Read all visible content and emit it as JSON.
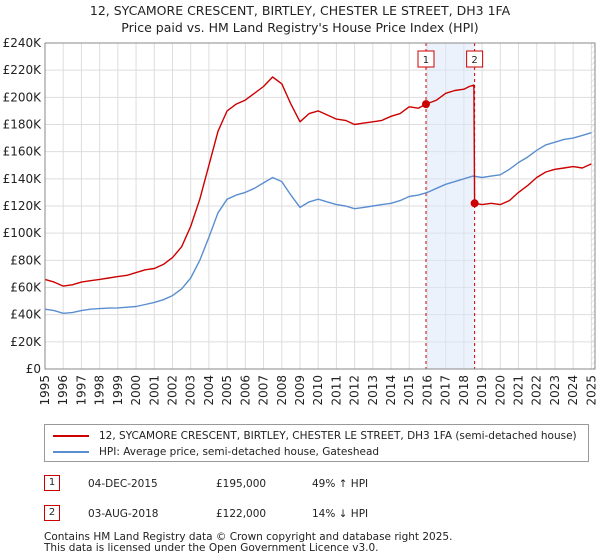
{
  "title_line1": "12, SYCAMORE CRESCENT, BIRTLEY, CHESTER LE STREET, DH3 1FA",
  "title_line2": "Price paid vs. HM Land Registry's House Price Index (HPI)",
  "chart_data": {
    "type": "line",
    "title": "12, SYCAMORE CRESCENT, BIRTLEY, CHESTER LE STREET, DH3 1FA — Price paid vs. HM Land Registry's House Price Index (HPI)",
    "xlim": [
      1995,
      2025.2
    ],
    "ylim": [
      0,
      240000
    ],
    "x_ticks": [
      "1995",
      "1996",
      "1997",
      "1998",
      "1999",
      "2000",
      "2001",
      "2002",
      "2003",
      "2004",
      "2005",
      "2006",
      "2007",
      "2008",
      "2009",
      "2010",
      "2011",
      "2012",
      "2013",
      "2014",
      "2015",
      "2016",
      "2017",
      "2018",
      "2019",
      "2020",
      "2021",
      "2022",
      "2023",
      "2024",
      "2025"
    ],
    "y_ticks": [
      {
        "value": 0,
        "label": "£0"
      },
      {
        "value": 20000,
        "label": "£20K"
      },
      {
        "value": 40000,
        "label": "£40K"
      },
      {
        "value": 60000,
        "label": "£60K"
      },
      {
        "value": 80000,
        "label": "£80K"
      },
      {
        "value": 100000,
        "label": "£100K"
      },
      {
        "value": 120000,
        "label": "£120K"
      },
      {
        "value": 140000,
        "label": "£140K"
      },
      {
        "value": 160000,
        "label": "£160K"
      },
      {
        "value": 180000,
        "label": "£180K"
      },
      {
        "value": 200000,
        "label": "£200K"
      },
      {
        "value": 220000,
        "label": "£220K"
      },
      {
        "value": 240000,
        "label": "£240K"
      }
    ],
    "grid": true,
    "series": [
      {
        "name": "12, SYCAMORE CRESCENT, BIRTLEY, CHESTER LE STREET, DH3 1FA (semi-detached house)",
        "color": "#cc0000",
        "points": [
          [
            1995.0,
            66000
          ],
          [
            1995.5,
            64000
          ],
          [
            1996.0,
            61000
          ],
          [
            1996.5,
            62000
          ],
          [
            1997.0,
            64000
          ],
          [
            1997.5,
            65000
          ],
          [
            1998.0,
            66000
          ],
          [
            1998.5,
            67000
          ],
          [
            1999.0,
            68000
          ],
          [
            1999.5,
            69000
          ],
          [
            2000.0,
            71000
          ],
          [
            2000.5,
            73000
          ],
          [
            2001.0,
            74000
          ],
          [
            2001.5,
            77000
          ],
          [
            2002.0,
            82000
          ],
          [
            2002.5,
            90000
          ],
          [
            2003.0,
            105000
          ],
          [
            2003.5,
            125000
          ],
          [
            2004.0,
            150000
          ],
          [
            2004.5,
            175000
          ],
          [
            2005.0,
            190000
          ],
          [
            2005.5,
            195000
          ],
          [
            2006.0,
            198000
          ],
          [
            2006.5,
            203000
          ],
          [
            2007.0,
            208000
          ],
          [
            2007.5,
            215000
          ],
          [
            2008.0,
            210000
          ],
          [
            2008.5,
            195000
          ],
          [
            2009.0,
            182000
          ],
          [
            2009.5,
            188000
          ],
          [
            2010.0,
            190000
          ],
          [
            2010.5,
            187000
          ],
          [
            2011.0,
            184000
          ],
          [
            2011.5,
            183000
          ],
          [
            2012.0,
            180000
          ],
          [
            2012.5,
            181000
          ],
          [
            2013.0,
            182000
          ],
          [
            2013.5,
            183000
          ],
          [
            2014.0,
            186000
          ],
          [
            2014.5,
            188000
          ],
          [
            2015.0,
            193000
          ],
          [
            2015.5,
            192000
          ],
          [
            2015.92,
            195000
          ],
          [
            2016.5,
            198000
          ],
          [
            2017.0,
            203000
          ],
          [
            2017.5,
            205000
          ],
          [
            2018.0,
            206000
          ],
          [
            2018.3,
            208000
          ],
          [
            2018.55,
            209000
          ],
          [
            2018.59,
            122000
          ],
          [
            2019.0,
            121000
          ],
          [
            2019.5,
            122000
          ],
          [
            2020.0,
            121000
          ],
          [
            2020.5,
            124000
          ],
          [
            2021.0,
            130000
          ],
          [
            2021.5,
            135000
          ],
          [
            2022.0,
            141000
          ],
          [
            2022.5,
            145000
          ],
          [
            2023.0,
            147000
          ],
          [
            2023.5,
            148000
          ],
          [
            2024.0,
            149000
          ],
          [
            2024.5,
            148000
          ],
          [
            2025.0,
            151000
          ]
        ]
      },
      {
        "name": "HPI: Average price, semi-detached house, Gateshead",
        "color": "#5b8ed0",
        "points": [
          [
            1995.0,
            44000
          ],
          [
            1995.5,
            43000
          ],
          [
            1996.0,
            41000
          ],
          [
            1996.5,
            41500
          ],
          [
            1997.0,
            43000
          ],
          [
            1997.5,
            44000
          ],
          [
            1998.0,
            44500
          ],
          [
            1998.5,
            44800
          ],
          [
            1999.0,
            45000
          ],
          [
            1999.5,
            45500
          ],
          [
            2000.0,
            46000
          ],
          [
            2000.5,
            47500
          ],
          [
            2001.0,
            49000
          ],
          [
            2001.5,
            51000
          ],
          [
            2002.0,
            54000
          ],
          [
            2002.5,
            59000
          ],
          [
            2003.0,
            67000
          ],
          [
            2003.5,
            80000
          ],
          [
            2004.0,
            97000
          ],
          [
            2004.5,
            115000
          ],
          [
            2005.0,
            125000
          ],
          [
            2005.5,
            128000
          ],
          [
            2006.0,
            130000
          ],
          [
            2006.5,
            133000
          ],
          [
            2007.0,
            137000
          ],
          [
            2007.5,
            141000
          ],
          [
            2008.0,
            138000
          ],
          [
            2008.5,
            128000
          ],
          [
            2009.0,
            119000
          ],
          [
            2009.5,
            123000
          ],
          [
            2010.0,
            125000
          ],
          [
            2010.5,
            123000
          ],
          [
            2011.0,
            121000
          ],
          [
            2011.5,
            120000
          ],
          [
            2012.0,
            118000
          ],
          [
            2012.5,
            119000
          ],
          [
            2013.0,
            120000
          ],
          [
            2013.5,
            121000
          ],
          [
            2014.0,
            122000
          ],
          [
            2014.5,
            124000
          ],
          [
            2015.0,
            127000
          ],
          [
            2015.5,
            128000
          ],
          [
            2016.0,
            130000
          ],
          [
            2016.5,
            133000
          ],
          [
            2017.0,
            136000
          ],
          [
            2017.5,
            138000
          ],
          [
            2018.0,
            140000
          ],
          [
            2018.5,
            142000
          ],
          [
            2019.0,
            141000
          ],
          [
            2019.5,
            142000
          ],
          [
            2020.0,
            143000
          ],
          [
            2020.5,
            147000
          ],
          [
            2021.0,
            152000
          ],
          [
            2021.5,
            156000
          ],
          [
            2022.0,
            161000
          ],
          [
            2022.5,
            165000
          ],
          [
            2023.0,
            167000
          ],
          [
            2023.5,
            169000
          ],
          [
            2024.0,
            170000
          ],
          [
            2024.5,
            172000
          ],
          [
            2025.0,
            174000
          ]
        ]
      }
    ],
    "sales": [
      {
        "id": "1",
        "x": 2015.92,
        "price": 195000
      },
      {
        "id": "2",
        "x": 2018.59,
        "price": 122000
      }
    ],
    "shaded_span": [
      2015.92,
      2018.59
    ],
    "forecast_hatch_from": 2025.0
  },
  "legend": {
    "property_label": "12, SYCAMORE CRESCENT, BIRTLEY, CHESTER LE STREET, DH3 1FA (semi-detached house)",
    "hpi_label": "HPI: Average price, semi-detached house, Gateshead"
  },
  "sales_table": [
    {
      "num": "1",
      "date": "04-DEC-2015",
      "price": "£195,000",
      "hpi": "49% ↑ HPI"
    },
    {
      "num": "2",
      "date": "03-AUG-2018",
      "price": "£122,000",
      "hpi": "14% ↓ HPI"
    }
  ],
  "footer": {
    "line1": "Contains HM Land Registry data © Crown copyright and database right 2025.",
    "line2": "This data is licensed under the Open Government Licence v3.0."
  }
}
